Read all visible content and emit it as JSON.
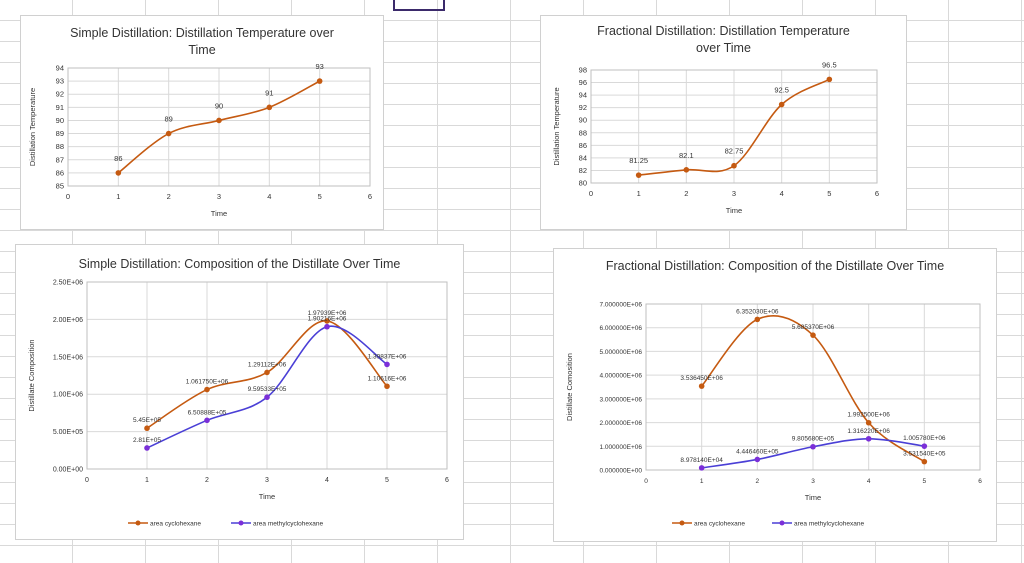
{
  "chart_data": [
    {
      "id": "simple-temp",
      "type": "line",
      "title": "Simple Distillation: Distillation Temperature over Time",
      "xlabel": "Time",
      "ylabel": "Distillation Temperature",
      "xlim": [
        0,
        6
      ],
      "ylim": [
        85,
        94
      ],
      "grid": true,
      "xticks": [
        "0",
        "1",
        "2",
        "3",
        "4",
        "5",
        "6"
      ],
      "yticks": [
        "85",
        "86",
        "87",
        "88",
        "89",
        "90",
        "91",
        "92",
        "93",
        "94"
      ],
      "x": [
        1,
        2,
        3,
        4,
        5
      ],
      "series": [
        {
          "values": [
            86,
            89,
            90,
            91,
            93
          ],
          "labels": [
            "86",
            "89",
            "90",
            "91",
            "93"
          ],
          "color": "#c55a11"
        }
      ]
    },
    {
      "id": "fractional-temp",
      "type": "line",
      "title": "Fractional Distillation: Distillation Temperature over Time",
      "xlabel": "Time",
      "ylabel": "Distillation Temperature",
      "xlim": [
        0,
        6
      ],
      "ylim": [
        80,
        98
      ],
      "grid": true,
      "xticks": [
        "0",
        "1",
        "2",
        "3",
        "4",
        "5",
        "6"
      ],
      "yticks": [
        "80",
        "82",
        "84",
        "86",
        "88",
        "90",
        "92",
        "94",
        "96",
        "98"
      ],
      "x": [
        1,
        2,
        3,
        4,
        5
      ],
      "series": [
        {
          "values": [
            81.25,
            82.1,
            82.75,
            92.5,
            96.5
          ],
          "labels": [
            "81.25",
            "82.1",
            "82.75",
            "92.5",
            "96.5"
          ],
          "color": "#c55a11"
        }
      ]
    },
    {
      "id": "simple-composition",
      "type": "line",
      "title": "Simple Distillation: Composition of the Distillate Over Time",
      "xlabel": "Time",
      "ylabel": "Distillate Composition",
      "xlim": [
        0,
        6
      ],
      "ylim": [
        0,
        2500000
      ],
      "grid": true,
      "legend": "bottom",
      "xticks": [
        "0",
        "1",
        "2",
        "3",
        "4",
        "5",
        "6"
      ],
      "yticks": [
        "0.00E+00",
        "5.00E+05",
        "1.00E+06",
        "1.50E+06",
        "2.00E+06",
        "2.50E+06"
      ],
      "x": [
        1,
        2,
        3,
        4,
        5
      ],
      "series": [
        {
          "name": "area cyclohexane",
          "color": "#c55a11",
          "values": [
            545000,
            1061750,
            1291120,
            1979390,
            1106160
          ],
          "labels": [
            "5.45E+05",
            "1.061750E+06",
            "1.29112E+06",
            "1.97939E+06",
            "1.10616E+06"
          ]
        },
        {
          "name": "area methylcyclohexane",
          "color": "#4a3fd6",
          "values": [
            281000,
            650888,
            959533,
            1902160,
            1398370
          ],
          "labels": [
            "2.81E+05",
            "6.50888E+05",
            "9.59533E+05",
            "1.90216E+06",
            "1.39837E+06"
          ]
        }
      ]
    },
    {
      "id": "fractional-composition",
      "type": "line",
      "title": "Fractional Distillation: Composition of the Distillate Over Time",
      "xlabel": "Time",
      "ylabel": "Distillate Comosition",
      "xlim": [
        0,
        6
      ],
      "ylim": [
        0,
        7000000
      ],
      "grid": true,
      "legend": "bottom",
      "xticks": [
        "0",
        "1",
        "2",
        "3",
        "4",
        "5",
        "6"
      ],
      "yticks": [
        "0.000000E+00",
        "1.000000E+06",
        "2.000000E+06",
        "3.000000E+06",
        "4.000000E+06",
        "5.000000E+06",
        "6.000000E+06",
        "7.000000E+06"
      ],
      "x": [
        1,
        2,
        3,
        4,
        5
      ],
      "series": [
        {
          "name": "area cyclohexane",
          "color": "#c55a11",
          "values": [
            3536450,
            6352030,
            5685370,
            1992500,
            353154
          ],
          "labels": [
            "3.536450E+06",
            "6.352030E+06",
            "5.685370E+06",
            "1.992500E+06",
            "3.531540E+05"
          ]
        },
        {
          "name": "area methylcyclohexane",
          "color": "#4a3fd6",
          "values": [
            89781.4,
            444646,
            980568,
            1316220,
            1005780
          ],
          "labels": [
            "8.978140E+04",
            "4.446460E+05",
            "9.805680E+05",
            "1.316220E+06",
            "1.005780E+06"
          ]
        }
      ]
    }
  ]
}
